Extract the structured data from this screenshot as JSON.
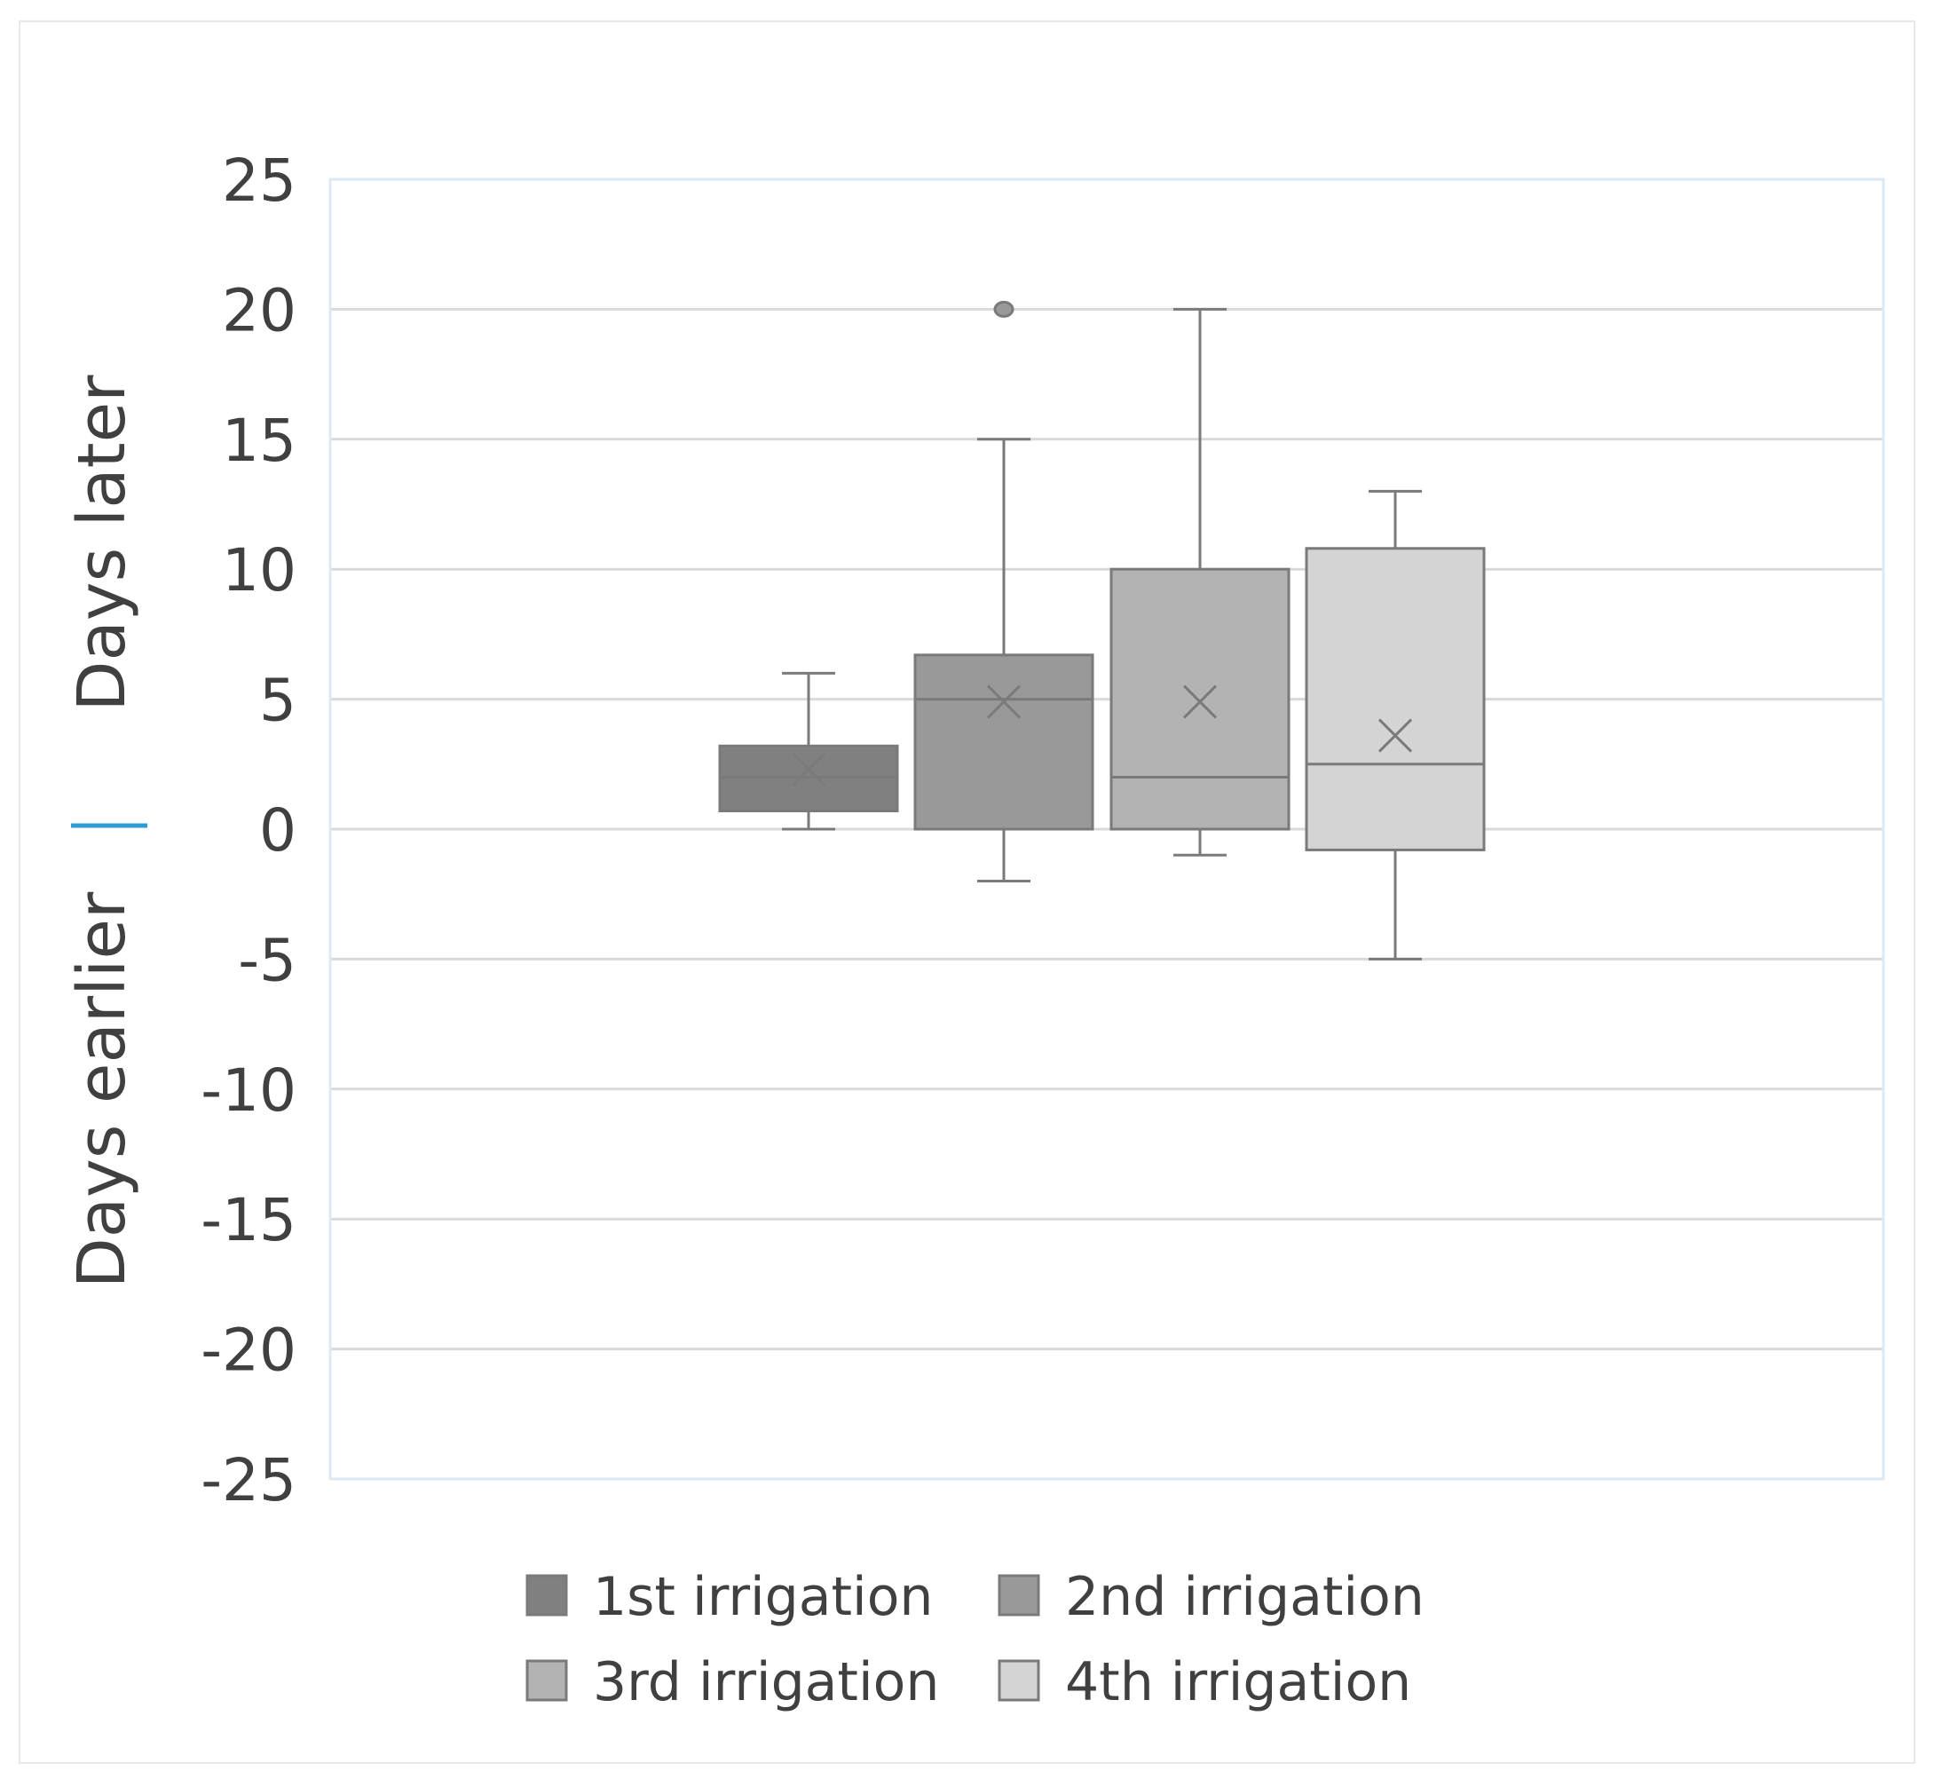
{
  "chart_data": {
    "type": "boxplot",
    "title": "",
    "xlabel": "",
    "ylabel_upper": "Days later",
    "ylabel_lower": "Days earlier",
    "ylim": [
      -25,
      25
    ],
    "y_ticks": [
      25,
      20,
      15,
      10,
      5,
      0,
      -5,
      -10,
      -15,
      -20,
      -25
    ],
    "y_tick_labels": [
      "25",
      "20",
      "15",
      "10",
      "5",
      "0",
      "-5",
      "-10",
      "-15",
      "-20",
      "-25"
    ],
    "grid": true,
    "legend_position": "bottom",
    "series": [
      {
        "name": "1st irrigation",
        "color": "#808080",
        "min": 0,
        "q1": 0.7,
        "median": 2,
        "q3": 3.2,
        "max": 6,
        "mean": 2.3,
        "outliers": []
      },
      {
        "name": "2nd irrigation",
        "color": "#999999",
        "min": -2,
        "q1": 0,
        "median": 5,
        "q3": 6.7,
        "max": 15,
        "mean": 4.9,
        "outliers": [
          20
        ]
      },
      {
        "name": "3rd irrigation",
        "color": "#b3b3b3",
        "min": -1,
        "q1": 0,
        "median": 2,
        "q3": 10,
        "max": 20,
        "mean": 4.9,
        "outliers": []
      },
      {
        "name": "4th irrigation",
        "color": "#d4d4d4",
        "min": -5,
        "q1": -0.8,
        "median": 2.5,
        "q3": 10.8,
        "max": 13,
        "mean": 3.6,
        "outliers": []
      }
    ]
  },
  "colors": {
    "gridline": "#d9d9d9",
    "plot_border": "#ddeaf3",
    "axis_text": "#404040",
    "zero_marker": "#2e9bd6",
    "outer_frame": "#e8e8e8",
    "box_stroke": "#7a7a7a"
  }
}
